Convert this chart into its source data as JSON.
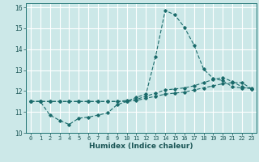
{
  "xlabel": "Humidex (Indice chaleur)",
  "bg_color": "#cce8e8",
  "grid_color": "#ffffff",
  "line_color": "#1a6b6b",
  "xlim": [
    -0.5,
    23.5
  ],
  "ylim": [
    10,
    16.2
  ],
  "xticks": [
    0,
    1,
    2,
    3,
    4,
    5,
    6,
    7,
    8,
    9,
    10,
    11,
    12,
    13,
    14,
    15,
    16,
    17,
    18,
    19,
    20,
    21,
    22,
    23
  ],
  "yticks": [
    10,
    11,
    12,
    13,
    14,
    15,
    16
  ],
  "line1_x": [
    0,
    1,
    2,
    3,
    4,
    5,
    6,
    7,
    8,
    9,
    10,
    11,
    12,
    13,
    14,
    15,
    16,
    17,
    18,
    19,
    20,
    21,
    22,
    23
  ],
  "line1_y": [
    11.5,
    11.5,
    10.85,
    10.6,
    10.4,
    10.7,
    10.75,
    10.85,
    10.95,
    11.35,
    11.5,
    11.7,
    11.85,
    13.65,
    15.85,
    15.65,
    15.05,
    14.2,
    13.05,
    12.6,
    12.5,
    12.2,
    12.15,
    12.15
  ],
  "line2_x": [
    0,
    1,
    2,
    3,
    4,
    5,
    6,
    7,
    8,
    9,
    10,
    11,
    12,
    13,
    14,
    15,
    16,
    17,
    18,
    19,
    20,
    21,
    22,
    23
  ],
  "line2_y": [
    11.5,
    11.5,
    11.5,
    11.5,
    11.5,
    11.5,
    11.5,
    11.5,
    11.5,
    11.5,
    11.55,
    11.6,
    11.75,
    11.9,
    12.05,
    12.1,
    12.15,
    12.25,
    12.4,
    12.55,
    12.65,
    12.45,
    12.2,
    12.1
  ],
  "line3_x": [
    0,
    1,
    2,
    3,
    4,
    5,
    6,
    7,
    8,
    9,
    10,
    11,
    12,
    13,
    14,
    15,
    16,
    17,
    18,
    19,
    20,
    21,
    22,
    23
  ],
  "line3_y": [
    11.5,
    11.5,
    11.5,
    11.5,
    11.5,
    11.5,
    11.5,
    11.5,
    11.5,
    11.5,
    11.5,
    11.55,
    11.65,
    11.75,
    11.85,
    11.9,
    11.95,
    12.05,
    12.15,
    12.25,
    12.35,
    12.4,
    12.4,
    12.1
  ]
}
